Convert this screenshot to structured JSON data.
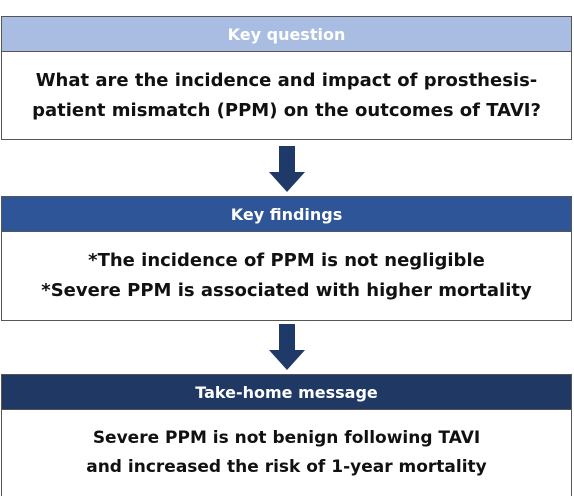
{
  "sections": [
    {
      "header": "Key question",
      "lines": [
        "What are the incidence and impact of prosthesis-",
        "patient mismatch (PPM) on the outcomes of TAVI?"
      ]
    },
    {
      "header": "Key findings",
      "lines": [
        "*The incidence of  PPM is not negligible",
        "*Severe PPM is associated with higher mortality"
      ]
    },
    {
      "header": "Take-home message",
      "lines": [
        "Severe PPM is not benign following TAVI",
        "and increased the risk of 1-year mortality"
      ]
    }
  ]
}
